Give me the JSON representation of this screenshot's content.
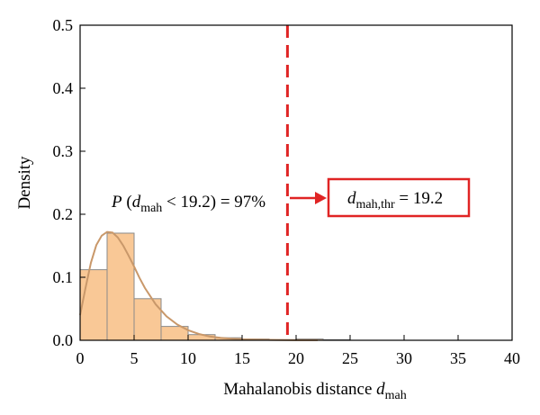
{
  "chart_data": {
    "type": "bar",
    "bins": [
      {
        "x0": 0,
        "x1": 2.5,
        "y": 0.112
      },
      {
        "x0": 2.5,
        "x1": 5,
        "y": 0.17
      },
      {
        "x0": 5,
        "x1": 7.5,
        "y": 0.066
      },
      {
        "x0": 7.5,
        "x1": 10,
        "y": 0.022
      },
      {
        "x0": 10,
        "x1": 12.5,
        "y": 0.009
      },
      {
        "x0": 12.5,
        "x1": 15,
        "y": 0.004
      },
      {
        "x0": 15,
        "x1": 17.5,
        "y": 0.002
      },
      {
        "x0": 17.5,
        "x1": 20,
        "y": 0.001
      },
      {
        "x0": 20,
        "x1": 22.5,
        "y": 0.002
      },
      {
        "x0": 22.5,
        "x1": 25,
        "y": 0.001
      }
    ],
    "density_curve": {
      "x": [
        0,
        0.5,
        1,
        1.5,
        2,
        2.5,
        3,
        3.5,
        4,
        4.5,
        5,
        5.5,
        6,
        7,
        8,
        9,
        10,
        11,
        12,
        13,
        14,
        15,
        16,
        18,
        20,
        22
      ],
      "y": [
        0.04,
        0.083,
        0.123,
        0.151,
        0.166,
        0.172,
        0.171,
        0.163,
        0.15,
        0.134,
        0.117,
        0.099,
        0.083,
        0.057,
        0.038,
        0.025,
        0.016,
        0.01,
        0.006,
        0.004,
        0.0025,
        0.0015,
        0.001,
        0.0005,
        0.0002,
        0.0001
      ]
    },
    "xlabel_main": "Mahalanobis distance",
    "xlabel_var": "d",
    "xlabel_sub": "mah",
    "ylabel": "Density",
    "xlim": [
      0,
      40
    ],
    "ylim": [
      0,
      0.5
    ],
    "xticks": [
      "0",
      "5",
      "10",
      "15",
      "20",
      "25",
      "30",
      "35",
      "40"
    ],
    "yticks": [
      "0.0",
      "0.1",
      "0.2",
      "0.3",
      "0.4",
      "0.5"
    ],
    "threshold": 19.2,
    "annotation_prob": {
      "prefix": "P (",
      "var": "d",
      "sub": "mah",
      "suffix": " < 19.2) = 97%"
    },
    "annotation_box": {
      "var": "d",
      "sub": "mah,thr",
      "suffix": " = 19.2"
    },
    "colors": {
      "bar_fill": "#f9c896",
      "bar_stroke": "#8a8a8a",
      "curve": "#c9986a",
      "threshold": "#e02424",
      "axis": "#000000"
    }
  }
}
